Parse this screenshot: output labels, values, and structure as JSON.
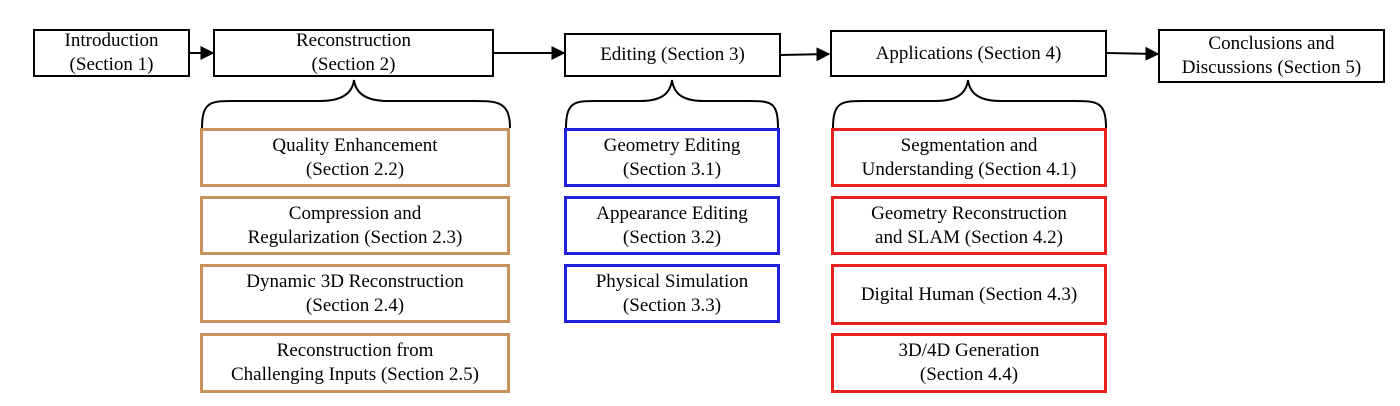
{
  "flow": [
    {
      "id": "intro",
      "label": "Introduction\n(Section 1)"
    },
    {
      "id": "recon",
      "label": "Reconstruction\n(Section 2)"
    },
    {
      "id": "edit",
      "label": "Editing (Section 3)"
    },
    {
      "id": "apps",
      "label": "Applications (Section 4)"
    },
    {
      "id": "concl",
      "label": "Conclusions and\nDiscussions (Section 5)"
    }
  ],
  "reconstruction_subsections": [
    "Quality Enhancement\n(Section 2.2)",
    "Compression and\nRegularization (Section 2.3)",
    "Dynamic 3D Reconstruction\n(Section 2.4)",
    "Reconstruction from\nChallenging Inputs (Section 2.5)"
  ],
  "editing_subsections": [
    "Geometry Editing\n(Section 3.1)",
    "Appearance Editing\n(Section 3.2)",
    "Physical Simulation\n(Section 3.3)"
  ],
  "application_subsections": [
    "Segmentation and\nUnderstanding (Section 4.1)",
    "Geometry Reconstruction\nand SLAM (Section 4.2)",
    "Digital Human (Section 4.3)",
    "3D/4D Generation\n(Section 4.4)"
  ],
  "colors": {
    "line": "#000000",
    "reconstruction_border": "#c8935c",
    "editing_border": "#1f22d8",
    "applications_border": "#e8221f"
  }
}
